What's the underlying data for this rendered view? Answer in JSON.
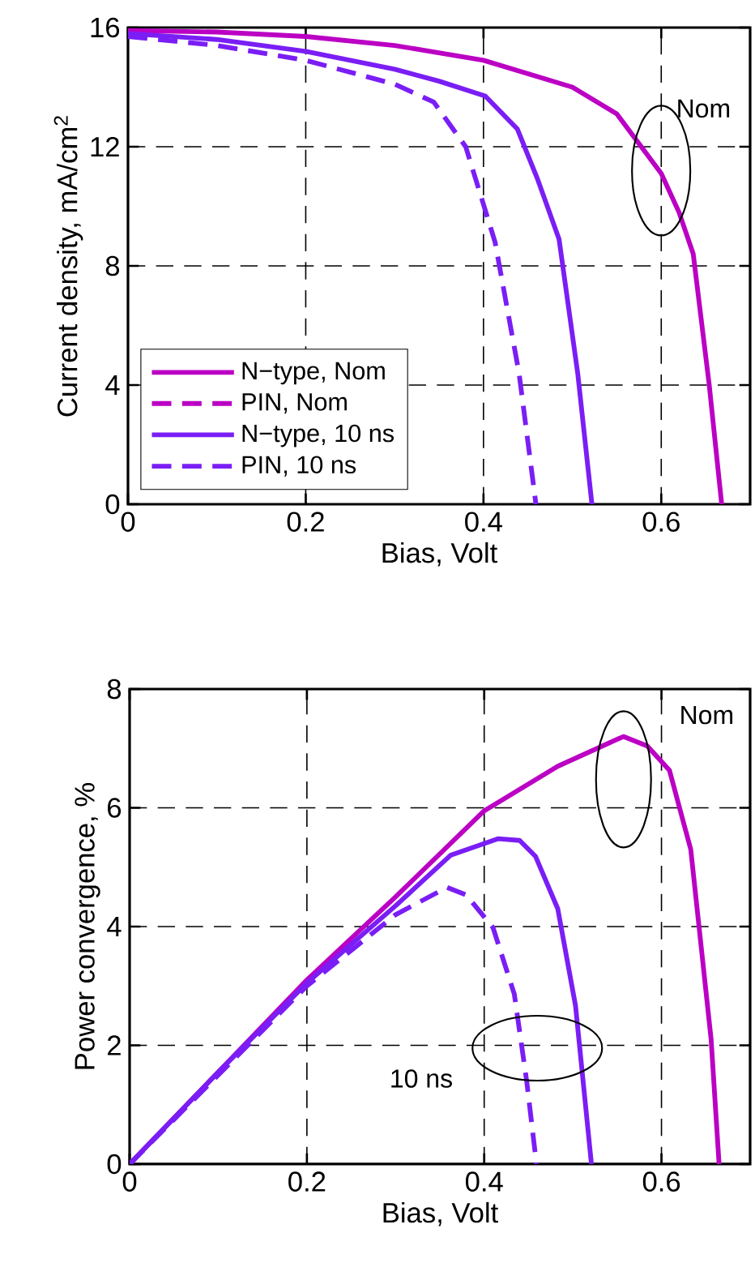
{
  "chart_data": [
    {
      "type": "line",
      "xlabel": "Bias, Volt",
      "ylabel": "Current density, mA/cm$^{2}$",
      "xlim": [
        0,
        0.7
      ],
      "ylim": [
        0,
        16
      ],
      "xticks": [
        0,
        0.2,
        0.4,
        0.6
      ],
      "yticks": [
        0,
        4,
        8,
        12,
        16
      ],
      "grid": true,
      "legend": "bottom left",
      "series": [
        {
          "name": "N−type, Nom",
          "color": "#bb00c4",
          "line_style": "solid",
          "x": [
            0,
            0.1,
            0.2,
            0.3,
            0.4,
            0.5,
            0.55,
            0.6,
            0.62,
            0.636,
            0.654,
            0.668
          ],
          "values": [
            15.9,
            15.85,
            15.7,
            15.4,
            14.9,
            14.0,
            13.1,
            11.1,
            9.8,
            8.4,
            4.0,
            0
          ]
        },
        {
          "name": "PIN, Nom",
          "color": "#bb00c4",
          "line_style": "dashed",
          "values": [
            null
          ]
        },
        {
          "name": "N−type, 10 ns",
          "color": "#7a1ef5",
          "line_style": "solid",
          "x": [
            0,
            0.1,
            0.2,
            0.3,
            0.35,
            0.402,
            0.438,
            0.461,
            0.485,
            0.506,
            0.522
          ],
          "values": [
            15.8,
            15.6,
            15.2,
            14.6,
            14.2,
            13.7,
            12.6,
            10.9,
            8.9,
            4.4,
            0
          ]
        },
        {
          "name": "PIN, 10 ns",
          "color": "#7a1ef5",
          "line_style": "dashed",
          "x": [
            0,
            0.1,
            0.2,
            0.3,
            0.344,
            0.38,
            0.413,
            0.44,
            0.459
          ],
          "values": [
            15.7,
            15.4,
            14.9,
            14.1,
            13.5,
            12.0,
            8.8,
            4.4,
            0
          ]
        }
      ],
      "annotations": [
        "Nom"
      ]
    },
    {
      "type": "line",
      "xlabel": "Bias, Volt",
      "ylabel": "Power convergence, %",
      "xlim": [
        0,
        0.7
      ],
      "ylim": [
        0,
        8
      ],
      "xticks": [
        0,
        0.2,
        0.4,
        0.6
      ],
      "yticks": [
        0,
        2,
        4,
        6,
        8
      ],
      "grid": true,
      "series": [
        {
          "color": "#bb00c4",
          "line_style": "solid",
          "x": [
            0,
            0.1,
            0.2,
            0.3,
            0.4,
            0.483,
            0.557,
            0.584,
            0.609,
            0.633,
            0.656,
            0.665
          ],
          "values": [
            0,
            1.55,
            3.1,
            4.5,
            5.95,
            6.7,
            7.2,
            7.04,
            6.63,
            5.3,
            2.1,
            0
          ]
        },
        {
          "color": "#7a1ef5",
          "line_style": "solid",
          "x": [
            0,
            0.1,
            0.2,
            0.3,
            0.362,
            0.416,
            0.44,
            0.458,
            0.483,
            0.503,
            0.521
          ],
          "values": [
            0,
            1.55,
            3.05,
            4.35,
            5.2,
            5.48,
            5.45,
            5.18,
            4.3,
            2.67,
            0
          ]
        },
        {
          "color": "#7a1ef5",
          "line_style": "dashed",
          "x": [
            0,
            0.1,
            0.2,
            0.3,
            0.358,
            0.38,
            0.41,
            0.434,
            0.448,
            0.459
          ],
          "values": [
            0,
            1.5,
            3.0,
            4.2,
            4.66,
            4.53,
            3.98,
            2.86,
            1.39,
            0
          ]
        }
      ],
      "annotations": [
        "Nom",
        "10 ns"
      ]
    }
  ]
}
